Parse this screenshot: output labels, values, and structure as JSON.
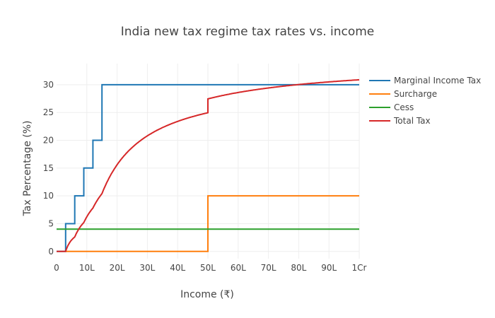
{
  "chart_data": {
    "type": "line",
    "title": "India new tax regime tax rates vs. income",
    "xlabel": "Income (₹)",
    "ylabel": "Tax Percentage (%)",
    "xlim": [
      0,
      100
    ],
    "ylim": [
      -1.3,
      33.8
    ],
    "x_unit": "lakh",
    "xticks": [
      0,
      10,
      20,
      30,
      40,
      50,
      60,
      70,
      80,
      90,
      100
    ],
    "xtick_labels": [
      "0",
      "10L",
      "20L",
      "30L",
      "40L",
      "50L",
      "60L",
      "70L",
      "80L",
      "90L",
      "1Cr"
    ],
    "yticks": [
      0,
      5,
      10,
      15,
      20,
      25,
      30
    ],
    "ytick_labels": [
      "0",
      "5",
      "10",
      "15",
      "20",
      "25",
      "30"
    ],
    "grid": true,
    "legend_position": "top-right",
    "tax_brackets": [
      {
        "from": 0,
        "to": 3,
        "rate": 0
      },
      {
        "from": 3,
        "to": 6,
        "rate": 5
      },
      {
        "from": 6,
        "to": 9,
        "rate": 10
      },
      {
        "from": 9,
        "to": 12,
        "rate": 15
      },
      {
        "from": 12,
        "to": 15,
        "rate": 20
      },
      {
        "from": 15,
        "to": 100,
        "rate": 30
      }
    ],
    "surcharge_steps": [
      {
        "from": 0,
        "to": 50,
        "rate": 0
      },
      {
        "from": 50,
        "to": 100,
        "rate": 10
      }
    ],
    "cess_rate": 4,
    "series": [
      {
        "name": "Marginal Income Tax",
        "color": "#1f77b4",
        "x": [
          0,
          3,
          3,
          6,
          6,
          9,
          9,
          12,
          12,
          15,
          15,
          100
        ],
        "y": [
          0,
          0,
          5,
          5,
          10,
          10,
          15,
          15,
          20,
          20,
          30,
          30
        ]
      },
      {
        "name": "Surcharge",
        "color": "#ff7f0e",
        "x": [
          3,
          50,
          50,
          100
        ],
        "y": [
          0,
          0,
          10,
          10
        ]
      },
      {
        "name": "Cess",
        "color": "#2ca02c",
        "x": [
          0,
          100
        ],
        "y": [
          4,
          4
        ]
      },
      {
        "name": "Total Tax",
        "color": "#d62728",
        "x": [
          0,
          3,
          10,
          15,
          20,
          30,
          40,
          50,
          50,
          60,
          70,
          80,
          90,
          100
        ],
        "y": [
          0,
          0,
          7.3,
          11.4,
          15.6,
          20.8,
          23.4,
          24.96,
          27.46,
          28.7,
          29.6,
          30.2,
          30.6,
          30.9
        ]
      }
    ]
  }
}
